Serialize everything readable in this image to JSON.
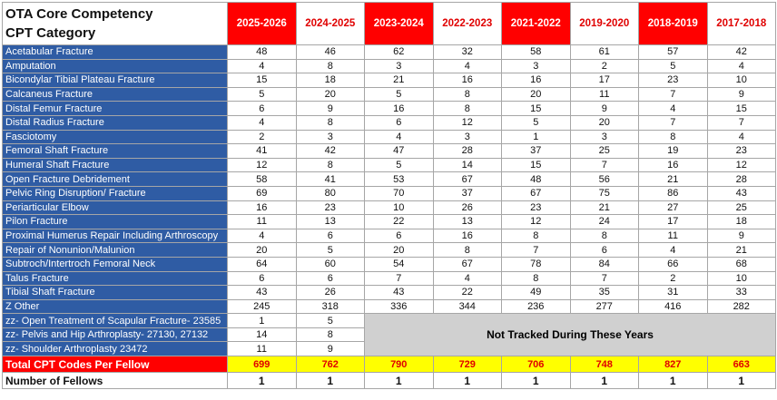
{
  "header": {
    "title": [
      "OTA Core Competency",
      "CPT Category"
    ],
    "columns": [
      "2025-2026",
      "2024-2025",
      "2023-2024",
      "2022-2023",
      "2021-2022",
      "2019-2020",
      "2018-2019",
      "2017-2018"
    ]
  },
  "rows": [
    {
      "label": "Acetabular Fracture",
      "values": [
        48,
        46,
        62,
        32,
        58,
        61,
        57,
        42
      ]
    },
    {
      "label": "Amputation",
      "values": [
        4,
        8,
        3,
        4,
        3,
        2,
        5,
        4
      ]
    },
    {
      "label": "Bicondylar Tibial Plateau Fracture",
      "values": [
        15,
        18,
        21,
        16,
        16,
        17,
        23,
        10
      ]
    },
    {
      "label": "Calcaneus Fracture",
      "values": [
        5,
        20,
        5,
        8,
        20,
        11,
        7,
        9
      ]
    },
    {
      "label": "Distal Femur Fracture",
      "values": [
        6,
        9,
        16,
        8,
        15,
        9,
        4,
        15
      ]
    },
    {
      "label": "Distal Radius Fracture",
      "values": [
        4,
        8,
        6,
        12,
        5,
        20,
        7,
        7
      ]
    },
    {
      "label": "Fasciotomy",
      "values": [
        2,
        3,
        4,
        3,
        1,
        3,
        8,
        4
      ]
    },
    {
      "label": "Femoral Shaft Fracture",
      "values": [
        41,
        42,
        47,
        28,
        37,
        25,
        19,
        23
      ]
    },
    {
      "label": "Humeral Shaft Fracture",
      "values": [
        12,
        8,
        5,
        14,
        15,
        7,
        16,
        12
      ]
    },
    {
      "label": "Open Fracture Debridement",
      "values": [
        58,
        41,
        53,
        67,
        48,
        56,
        21,
        28
      ]
    },
    {
      "label": "Pelvic Ring Disruption/ Fracture",
      "values": [
        69,
        80,
        70,
        37,
        67,
        75,
        86,
        43
      ]
    },
    {
      "label": "Periarticular Elbow",
      "values": [
        16,
        23,
        10,
        26,
        23,
        21,
        27,
        25
      ]
    },
    {
      "label": "Pilon Fracture",
      "values": [
        11,
        13,
        22,
        13,
        12,
        24,
        17,
        18
      ]
    },
    {
      "label": "Proximal Humerus Repair Including Arthroscopy",
      "values": [
        4,
        6,
        6,
        16,
        8,
        8,
        11,
        9
      ]
    },
    {
      "label": "Repair of Nonunion/Malunion",
      "values": [
        20,
        5,
        20,
        8,
        7,
        6,
        4,
        21
      ]
    },
    {
      "label": "Subtroch/Intertroch Femoral Neck",
      "values": [
        64,
        60,
        54,
        67,
        78,
        84,
        66,
        68
      ]
    },
    {
      "label": "Talus Fracture",
      "values": [
        6,
        6,
        7,
        4,
        8,
        7,
        2,
        10
      ]
    },
    {
      "label": "Tibial Shaft Fracture",
      "values": [
        43,
        26,
        43,
        22,
        49,
        35,
        31,
        33
      ]
    },
    {
      "label": "Z Other",
      "values": [
        245,
        318,
        336,
        344,
        236,
        277,
        416,
        282
      ]
    },
    {
      "label": "zz- Open Treatment of Scapular Fracture- 23585",
      "values": [
        1,
        5
      ]
    },
    {
      "label": "zz- Pelvis and Hip Arthroplasty- 27130, 27132",
      "values": [
        14,
        8
      ]
    },
    {
      "label": "zz- Shoulder Arthroplasty 23472",
      "values": [
        11,
        9
      ]
    }
  ],
  "untracked_note": "Not Tracked During These Years",
  "total": {
    "label": "Total CPT Codes Per Fellow",
    "values": [
      699,
      762,
      790,
      729,
      706,
      748,
      827,
      663
    ]
  },
  "fellows": {
    "label": "Number of Fellows",
    "values": [
      1,
      1,
      1,
      1,
      1,
      1,
      1,
      1
    ]
  }
}
